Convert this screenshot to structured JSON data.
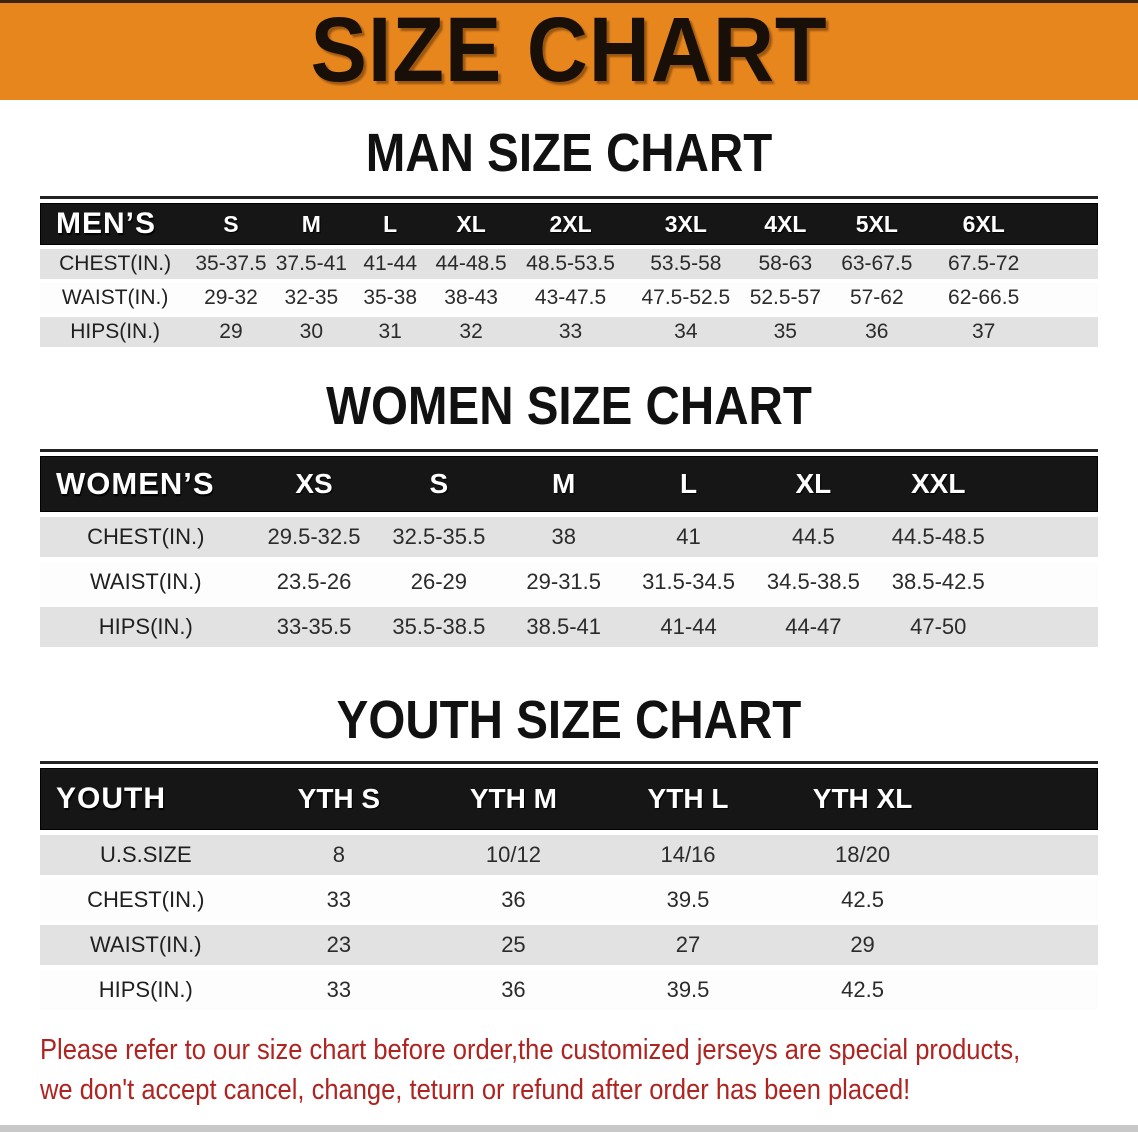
{
  "banner": {
    "title": "SIZE CHART",
    "bg_color": "#E8861E"
  },
  "men": {
    "heading": "MAN SIZE CHART",
    "label": "MEN’S",
    "sizes": [
      "S",
      "M",
      "L",
      "XL",
      "2XL",
      "3XL",
      "4XL",
      "5XL",
      "6XL"
    ],
    "rows": [
      {
        "label": "CHEST(IN.)",
        "values": [
          "35-37.5",
          "37.5-41",
          "41-44",
          "44-48.5",
          "48.5-53.5",
          "53.5-58",
          "58-63",
          "63-67.5",
          "67.5-72"
        ]
      },
      {
        "label": "WAIST(IN.)",
        "values": [
          "29-32",
          "32-35",
          "35-38",
          "38-43",
          "43-47.5",
          "47.5-52.5",
          "52.5-57",
          "57-62",
          "62-66.5"
        ]
      },
      {
        "label": "HIPS(IN.)",
        "values": [
          "29",
          "30",
          "31",
          "32",
          "33",
          "34",
          "35",
          "36",
          "37"
        ]
      }
    ]
  },
  "women": {
    "heading": "WOMEN SIZE CHART",
    "label": "WOMEN’S",
    "sizes": [
      "XS",
      "S",
      "M",
      "L",
      "XL",
      "XXL"
    ],
    "rows": [
      {
        "label": "CHEST(IN.)",
        "values": [
          "29.5-32.5",
          "32.5-35.5",
          "38",
          "41",
          "44.5",
          "44.5-48.5"
        ]
      },
      {
        "label": "WAIST(IN.)",
        "values": [
          "23.5-26",
          "26-29",
          "29-31.5",
          "31.5-34.5",
          "34.5-38.5",
          "38.5-42.5"
        ]
      },
      {
        "label": "HIPS(IN.)",
        "values": [
          "33-35.5",
          "35.5-38.5",
          "38.5-41",
          "41-44",
          "44-47",
          "47-50"
        ]
      }
    ]
  },
  "youth": {
    "heading": "YOUTH SIZE CHART",
    "label": "YOUTH",
    "sizes": [
      "YTH S",
      "YTH M",
      "YTH L",
      "YTH XL"
    ],
    "rows": [
      {
        "label": "U.S.SIZE",
        "values": [
          "8",
          "10/12",
          "14/16",
          "18/20"
        ]
      },
      {
        "label": "CHEST(IN.)",
        "values": [
          "33",
          "36",
          "39.5",
          "42.5"
        ]
      },
      {
        "label": "WAIST(IN.)",
        "values": [
          "23",
          "25",
          "27",
          "29"
        ]
      },
      {
        "label": "HIPS(IN.)",
        "values": [
          "33",
          "36",
          "39.5",
          "42.5"
        ]
      }
    ]
  },
  "disclaimer": {
    "line1": "Please refer to our size chart before order,the customized jerseys are special products,",
    "line2": "we don't accept cancel, change, teturn or refund after order has been placed!",
    "color": "#AF2420"
  }
}
